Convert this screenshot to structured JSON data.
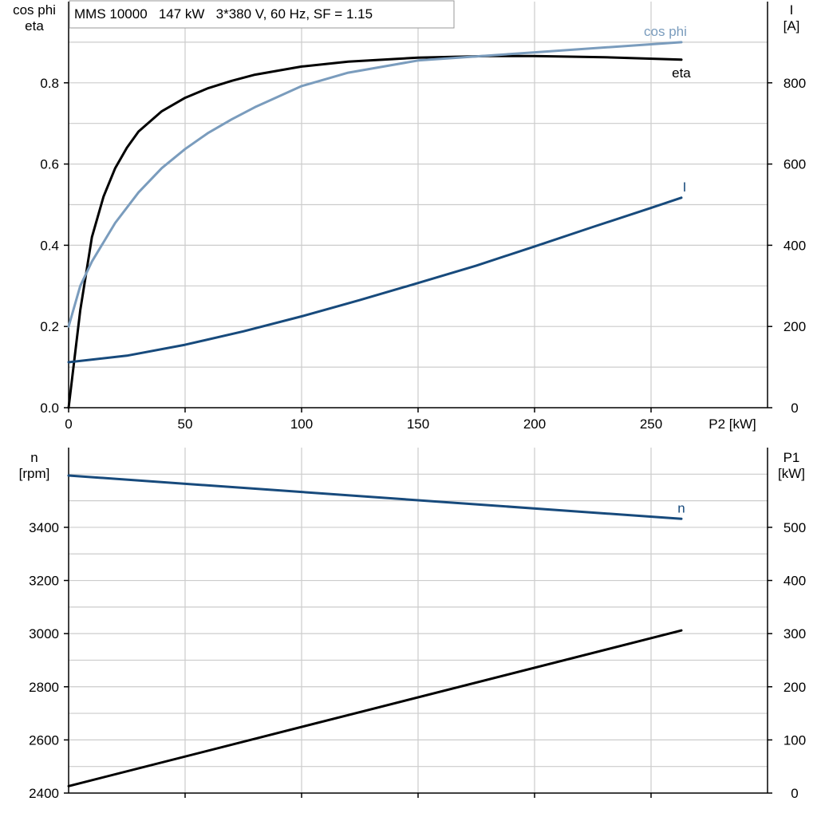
{
  "header": {
    "title_box": "MMS 10000   147 kW   3*380 V, 60 Hz, SF = 1.15"
  },
  "colors": {
    "eta": "#000000",
    "cos_phi": "#7a9cbd",
    "current": "#174a7c",
    "speed": "#174a7c",
    "p1": "#000000",
    "grid": "#cccccc",
    "axis": "#000000"
  },
  "chart_data": [
    {
      "type": "line",
      "name": "top",
      "xlabel": "P2 [kW]",
      "xlim": [
        0,
        300
      ],
      "xticks": [
        0,
        50,
        100,
        150,
        200,
        250
      ],
      "left_axis": {
        "label_lines": [
          "cos phi",
          "eta"
        ],
        "ylim": [
          0,
          1.0
        ],
        "ticks": [
          0.0,
          0.2,
          0.4,
          0.6,
          0.8
        ],
        "tick_labels": [
          "0.0",
          "0.2",
          "0.4",
          "0.6",
          "0.8"
        ]
      },
      "right_axis": {
        "label_lines": [
          "I",
          "[A]"
        ],
        "ylim": [
          0,
          1000
        ],
        "ticks": [
          0,
          200,
          400,
          600,
          800
        ],
        "tick_labels": [
          "0",
          "200",
          "400",
          "600",
          "800"
        ]
      },
      "grid": true,
      "series": [
        {
          "name": "eta",
          "axis": "left",
          "color_key": "eta",
          "x": [
            0,
            5,
            10,
            15,
            20,
            25,
            30,
            40,
            50,
            60,
            70,
            80,
            100,
            120,
            150,
            180,
            200,
            230,
            263
          ],
          "y": [
            0.0,
            0.24,
            0.42,
            0.52,
            0.59,
            0.64,
            0.68,
            0.73,
            0.763,
            0.787,
            0.805,
            0.82,
            0.84,
            0.852,
            0.862,
            0.866,
            0.866,
            0.863,
            0.857
          ]
        },
        {
          "name": "cos phi",
          "axis": "left",
          "color_key": "cos_phi",
          "x": [
            0,
            5,
            10,
            20,
            30,
            40,
            50,
            60,
            70,
            80,
            100,
            120,
            150,
            200,
            263
          ],
          "y": [
            0.2,
            0.3,
            0.36,
            0.455,
            0.53,
            0.59,
            0.637,
            0.677,
            0.71,
            0.74,
            0.792,
            0.825,
            0.855,
            0.875,
            0.9
          ]
        },
        {
          "name": "I",
          "axis": "right",
          "color_key": "current",
          "x": [
            0,
            25,
            50,
            75,
            100,
            125,
            150,
            175,
            200,
            225,
            250,
            263
          ],
          "y": [
            112,
            128,
            155,
            188,
            225,
            265,
            307,
            350,
            397,
            445,
            492,
            517
          ]
        }
      ]
    },
    {
      "type": "line",
      "name": "bottom",
      "xlim": [
        0,
        300
      ],
      "left_axis": {
        "label_lines": [
          "n",
          "[rpm]"
        ],
        "ylim": [
          2400,
          3700
        ],
        "ticks": [
          2400,
          2600,
          2800,
          3000,
          3200,
          3400
        ],
        "tick_labels": [
          "2400",
          "2600",
          "2800",
          "3000",
          "3200",
          "3400"
        ]
      },
      "right_axis": {
        "label_lines": [
          "P1",
          "[kW]"
        ],
        "ylim": [
          0,
          650
        ],
        "ticks": [
          0,
          100,
          200,
          300,
          400,
          500
        ],
        "tick_labels": [
          "0",
          "100",
          "200",
          "300",
          "400",
          "500"
        ]
      },
      "grid": true,
      "series": [
        {
          "name": "n",
          "axis": "left",
          "color_key": "speed",
          "x": [
            0,
            263
          ],
          "y": [
            3595,
            3432
          ]
        },
        {
          "name": "",
          "axis": "right",
          "color_key": "p1",
          "x": [
            0,
            263
          ],
          "y": [
            13,
            306
          ]
        }
      ]
    }
  ]
}
